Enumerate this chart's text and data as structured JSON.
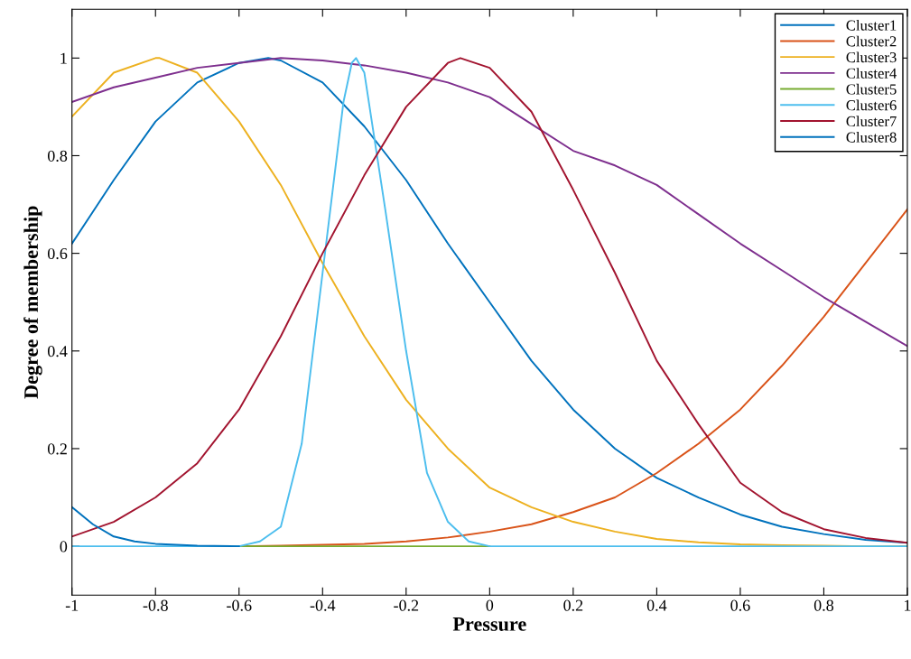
{
  "chart_data": {
    "type": "line",
    "xlabel": "Pressure",
    "ylabel": "Degree of membership",
    "x": [
      -1,
      -0.9,
      -0.8,
      -0.7,
      -0.6,
      -0.5,
      -0.4,
      -0.3,
      -0.2,
      -0.1,
      0,
      0.1,
      0.2,
      0.3,
      0.4,
      0.5,
      0.6,
      0.7,
      0.8,
      0.9,
      1
    ],
    "series": [
      {
        "name": "Cluster1",
        "color": "#0072bd",
        "x": [
          -1,
          -0.9,
          -0.8,
          -0.7,
          -0.6,
          -0.53,
          -0.5,
          -0.4,
          -0.3,
          -0.2,
          -0.1,
          0,
          0.1,
          0.2,
          0.3,
          0.4,
          0.5,
          0.6,
          0.7,
          0.8,
          0.9,
          1
        ],
        "values": [
          0.62,
          0.75,
          0.87,
          0.95,
          0.99,
          1.0,
          0.995,
          0.95,
          0.86,
          0.75,
          0.62,
          0.5,
          0.38,
          0.28,
          0.2,
          0.14,
          0.1,
          0.065,
          0.04,
          0.025,
          0.013,
          0.007
        ]
      },
      {
        "name": "Cluster2",
        "color": "#d95319",
        "values": [
          null,
          null,
          null,
          null,
          0,
          0.001,
          0.003,
          0.005,
          0.01,
          0.018,
          0.03,
          0.045,
          0.07,
          0.1,
          0.15,
          0.21,
          0.28,
          0.37,
          0.47,
          0.58,
          0.69
        ]
      },
      {
        "name": "Cluster3",
        "color": "#edb120",
        "x": [
          -1,
          -0.9,
          -0.8,
          -0.79,
          -0.7,
          -0.6,
          -0.5,
          -0.4,
          -0.3,
          -0.2,
          -0.1,
          0,
          0.1,
          0.2,
          0.3,
          0.4,
          0.5,
          0.6,
          0.7,
          0.8,
          0.9,
          1
        ],
        "values": [
          0.88,
          0.97,
          1.0,
          1.0,
          0.97,
          0.87,
          0.74,
          0.58,
          0.43,
          0.3,
          0.2,
          0.12,
          0.08,
          0.05,
          0.03,
          0.015,
          0.008,
          0.004,
          0.002,
          0.001,
          0,
          0
        ]
      },
      {
        "name": "Cluster4",
        "color": "#7e2f8e",
        "values": [
          0.91,
          0.94,
          0.96,
          0.98,
          0.99,
          1.0,
          0.995,
          0.985,
          0.97,
          0.95,
          0.92,
          0.865,
          0.81,
          0.78,
          0.74,
          0.68,
          0.62,
          0.565,
          0.51,
          0.46,
          0.41
        ]
      },
      {
        "name": "Cluster5",
        "color": "#77ac30",
        "x": [
          -0.6,
          -0.5,
          -0.4,
          -0.3,
          -0.2,
          -0.1,
          0
        ],
        "values": [
          0,
          0,
          0,
          0,
          0,
          0,
          0
        ]
      },
      {
        "name": "Cluster6",
        "color": "#4dbeee",
        "x": [
          -1,
          -0.6,
          -0.55,
          -0.5,
          -0.45,
          -0.4,
          -0.35,
          -0.33,
          -0.32,
          -0.3,
          -0.25,
          -0.2,
          -0.15,
          -0.1,
          -0.05,
          0,
          1
        ],
        "values": [
          0,
          0,
          0.01,
          0.04,
          0.21,
          0.56,
          0.91,
          0.99,
          1.0,
          0.97,
          0.69,
          0.4,
          0.15,
          0.05,
          0.01,
          0,
          0
        ]
      },
      {
        "name": "Cluster7",
        "color": "#a2142f",
        "x": [
          -1,
          -0.9,
          -0.8,
          -0.7,
          -0.6,
          -0.5,
          -0.4,
          -0.3,
          -0.2,
          -0.1,
          -0.07,
          0,
          0.1,
          0.2,
          0.3,
          0.4,
          0.5,
          0.6,
          0.7,
          0.8,
          0.9,
          1
        ],
        "values": [
          0.02,
          0.05,
          0.1,
          0.17,
          0.28,
          0.43,
          0.6,
          0.76,
          0.9,
          0.99,
          1.0,
          0.98,
          0.89,
          0.73,
          0.56,
          0.38,
          0.25,
          0.13,
          0.07,
          0.035,
          0.017,
          0.007
        ]
      },
      {
        "name": "Cluster8",
        "color": "#0072bd",
        "x": [
          -1,
          -0.95,
          -0.9,
          -0.85,
          -0.8,
          -0.7,
          -0.6
        ],
        "values": [
          0.08,
          0.045,
          0.02,
          0.01,
          0.005,
          0.001,
          0
        ]
      }
    ],
    "xlim": [
      -1,
      1
    ],
    "ylim": [
      -0.1,
      1.1
    ],
    "xticks": [
      -1,
      -0.8,
      -0.6,
      -0.4,
      -0.2,
      0,
      0.2,
      0.4,
      0.6,
      0.8,
      1
    ],
    "yticks": [
      0,
      0.2,
      0.4,
      0.6,
      0.8,
      1
    ],
    "grid": false,
    "legend": "top right"
  }
}
